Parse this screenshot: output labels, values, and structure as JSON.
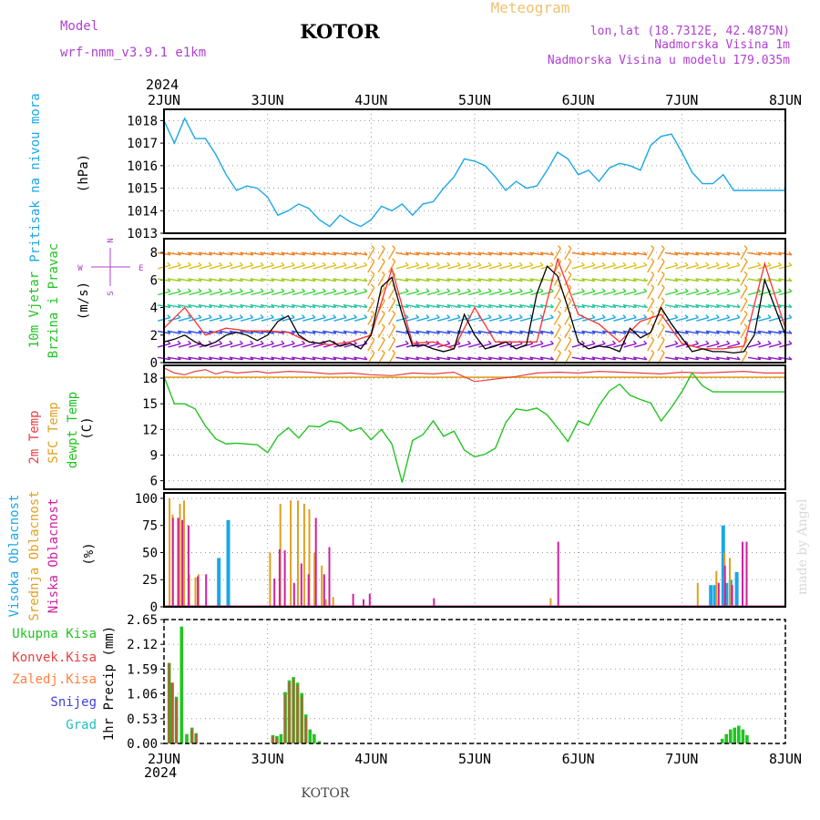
{
  "header": {
    "model_label": "Model",
    "model_name": "wrf-nmm_v3.9.1  e1km",
    "station": "KOTOR",
    "meteogram_label": "Meteogram",
    "lonlat": "lon,lat (18.7312E, 42.4875N)",
    "elevation": "Nadmorska Visina 1m",
    "model_elevation": "Nadmorska Visina u modelu 179.035m",
    "watermark": "made by Angel",
    "footer_station": "KOTOR"
  },
  "time_axis": {
    "year": "2024",
    "labels": [
      "2JUN",
      "3JUN",
      "4JUN",
      "5JUN",
      "6JUN",
      "7JUN",
      "8JUN"
    ]
  },
  "colors": {
    "pressure": "#1aa7e6",
    "wind_speed": "#000000",
    "gust": "#ff3030",
    "temp2m": "#e84040",
    "sfc_temp": "#e0a020",
    "dewpt": "#22c422",
    "high_cloud": "#1aa7e6",
    "mid_cloud": "#e0a020",
    "low_cloud": "#d020a0",
    "total_precip": "#22c422",
    "conv_precip": "#e84040",
    "frozen": "#ff8040",
    "snow": "#4040e0",
    "hail": "#20c0c0",
    "purple_text": "#b040d0"
  },
  "chart_data": [
    {
      "type": "line",
      "panel": "pressure",
      "ylabel": "(hPa)",
      "side_labels": [
        "Pritisak na nivou mora"
      ],
      "ylim": [
        1013,
        1018.5
      ],
      "yticks": [
        1013,
        1014,
        1015,
        1016,
        1017,
        1018
      ],
      "series": [
        {
          "x": [
            0,
            0.1,
            0.2,
            0.3,
            0.4,
            0.5,
            0.6,
            0.7,
            0.8,
            0.9,
            1.0,
            1.1,
            1.2,
            1.3,
            1.4,
            1.5,
            1.6,
            1.7,
            1.8,
            1.9,
            2.0,
            2.1,
            2.2,
            2.3,
            2.4,
            2.5,
            2.6,
            2.7,
            2.8,
            2.9,
            3.0,
            3.1,
            3.2,
            3.3,
            3.4,
            3.5,
            3.6,
            3.7,
            3.8,
            3.9,
            4.0,
            4.1,
            4.2,
            4.3,
            4.4,
            4.5,
            4.6,
            4.7,
            4.8,
            4.9,
            5.0,
            5.1,
            5.2,
            5.3,
            5.4,
            5.5,
            5.6,
            5.7,
            5.8,
            5.9,
            6.0
          ],
          "values": [
            1018.0,
            1017.0,
            1018.1,
            1017.2,
            1017.2,
            1016.5,
            1015.6,
            1014.9,
            1015.1,
            1015.0,
            1014.6,
            1013.8,
            1014.0,
            1014.3,
            1014.1,
            1013.6,
            1013.3,
            1013.8,
            1013.5,
            1013.3,
            1013.6,
            1014.2,
            1014.0,
            1014.3,
            1013.8,
            1014.3,
            1014.4,
            1015.0,
            1015.5,
            1016.3,
            1016.2,
            1016.0,
            1015.5,
            1014.9,
            1015.3,
            1015.0,
            1015.1,
            1015.8,
            1016.6,
            1016.3,
            1015.6,
            1015.8,
            1015.3,
            1015.9,
            1016.1,
            1016.0,
            1015.8,
            1016.9,
            1017.3,
            1017.4,
            1016.6,
            1015.7,
            1015.2,
            1015.2,
            1015.6,
            1014.9,
            1014.9,
            1014.9,
            1014.9,
            1014.9,
            1014.9
          ]
        }
      ]
    },
    {
      "type": "line",
      "panel": "wind",
      "ylabel": "(m/s)",
      "side_labels": [
        "10m Vjetar",
        "Brzina i Pravac"
      ],
      "compass": {
        "n": "N",
        "e": "E",
        "w": "W",
        "s": "S"
      },
      "ylim": [
        0,
        9
      ],
      "yticks": [
        0,
        2,
        4,
        6,
        8
      ],
      "series": [
        {
          "name": "speed",
          "x": [
            0,
            0.1,
            0.2,
            0.3,
            0.4,
            0.5,
            0.6,
            0.7,
            0.8,
            0.9,
            1.0,
            1.1,
            1.2,
            1.3,
            1.4,
            1.5,
            1.6,
            1.7,
            1.8,
            1.9,
            2.0,
            2.1,
            2.2,
            2.3,
            2.4,
            2.5,
            2.6,
            2.7,
            2.8,
            2.9,
            3.0,
            3.1,
            3.2,
            3.3,
            3.4,
            3.5,
            3.6,
            3.7,
            3.8,
            3.9,
            4.0,
            4.1,
            4.2,
            4.3,
            4.4,
            4.5,
            4.6,
            4.7,
            4.8,
            4.9,
            5.0,
            5.1,
            5.2,
            5.3,
            5.4,
            5.5,
            5.6,
            5.7,
            5.8,
            5.9,
            6.0
          ],
          "values": [
            1.5,
            1.7,
            2.0,
            1.5,
            1.2,
            1.5,
            2.0,
            2.2,
            2.0,
            1.6,
            2.0,
            3.0,
            3.4,
            2.0,
            1.5,
            1.4,
            1.6,
            1.2,
            1.4,
            1.0,
            2.0,
            5.5,
            6.2,
            3.5,
            1.2,
            1.3,
            1.0,
            0.8,
            1.0,
            3.5,
            2.0,
            1.0,
            1.2,
            1.5,
            1.0,
            1.3,
            5.0,
            7.0,
            6.3,
            4.0,
            1.5,
            1.0,
            1.2,
            1.1,
            0.8,
            2.5,
            1.8,
            2.2,
            4.0,
            2.8,
            1.8,
            0.8,
            1.0,
            0.8,
            0.8,
            0.7,
            0.8,
            2.0,
            6.0,
            4.0,
            2.0
          ]
        },
        {
          "name": "gust",
          "x": [
            0,
            0.2,
            0.4,
            0.6,
            0.8,
            1.0,
            1.2,
            1.4,
            1.6,
            1.8,
            2.0,
            2.2,
            2.4,
            2.6,
            2.8,
            3.0,
            3.2,
            3.4,
            3.6,
            3.8,
            4.0,
            4.2,
            4.4,
            4.6,
            4.8,
            5.0,
            5.2,
            5.4,
            5.6,
            5.8,
            6.0
          ],
          "values": [
            2.5,
            4.0,
            2.0,
            2.5,
            2.3,
            2.3,
            2.2,
            1.5,
            1.3,
            1.5,
            2.0,
            6.8,
            1.4,
            1.5,
            1.0,
            4.0,
            1.5,
            1.5,
            1.5,
            7.5,
            3.5,
            2.8,
            1.5,
            3.0,
            3.5,
            1.4,
            1.0,
            1.0,
            1.2,
            7.2,
            2.5
          ]
        }
      ]
    },
    {
      "type": "line",
      "panel": "temperature",
      "ylabel": "(C)",
      "side_labels": [
        "2m Temp",
        "SFC Temp",
        "dewpt Temp"
      ],
      "ylim": [
        5,
        19.5
      ],
      "yticks": [
        6,
        9,
        12,
        15,
        18
      ],
      "series": [
        {
          "name": "2m",
          "x": [
            0,
            0.1,
            0.2,
            0.3,
            0.4,
            0.5,
            0.6,
            0.7,
            0.8,
            0.9,
            1.0,
            1.2,
            1.4,
            1.6,
            1.8,
            2.0,
            2.2,
            2.4,
            2.6,
            2.8,
            3.0,
            3.2,
            3.4,
            3.6,
            3.8,
            4.0,
            4.2,
            4.4,
            4.6,
            4.8,
            5.0,
            5.2,
            5.4,
            5.6,
            5.8,
            6.0
          ],
          "values": [
            19.2,
            18.6,
            18.4,
            18.8,
            19.0,
            18.5,
            18.8,
            18.6,
            18.7,
            18.8,
            18.6,
            18.8,
            18.7,
            18.5,
            18.6,
            18.4,
            18.3,
            18.6,
            18.5,
            18.7,
            17.6,
            17.9,
            18.2,
            18.6,
            18.7,
            18.6,
            18.8,
            18.7,
            18.6,
            18.5,
            18.7,
            18.6,
            18.7,
            18.8,
            18.6,
            18.6
          ]
        },
        {
          "name": "sfc",
          "x": [
            0,
            1,
            2,
            3,
            4,
            5,
            6
          ],
          "values": [
            18.1,
            18.1,
            18.1,
            18.1,
            18.1,
            18.1,
            18.1
          ]
        },
        {
          "name": "dewpt",
          "x": [
            0,
            0.1,
            0.2,
            0.3,
            0.4,
            0.5,
            0.6,
            0.7,
            0.8,
            0.9,
            1.0,
            1.1,
            1.2,
            1.3,
            1.4,
            1.5,
            1.6,
            1.7,
            1.8,
            1.9,
            2.0,
            2.1,
            2.2,
            2.3,
            2.4,
            2.5,
            2.6,
            2.7,
            2.8,
            2.9,
            3.0,
            3.1,
            3.2,
            3.3,
            3.4,
            3.5,
            3.6,
            3.7,
            3.8,
            3.9,
            4.0,
            4.1,
            4.2,
            4.3,
            4.4,
            4.5,
            4.6,
            4.7,
            4.8,
            4.9,
            5.0,
            5.1,
            5.2,
            5.3,
            5.4,
            5.5,
            5.6,
            5.7,
            5.8,
            5.9,
            6.0
          ],
          "values": [
            18.2,
            15.0,
            15.0,
            14.4,
            12.4,
            10.9,
            10.3,
            10.4,
            10.3,
            10.2,
            9.3,
            11.2,
            12.2,
            11.0,
            12.4,
            12.3,
            13.0,
            12.8,
            11.8,
            12.2,
            10.8,
            12.0,
            10.3,
            5.8,
            10.7,
            11.4,
            13.0,
            11.2,
            11.8,
            9.6,
            8.8,
            9.1,
            9.8,
            12.8,
            14.4,
            14.2,
            14.5,
            13.7,
            12.2,
            10.6,
            13.0,
            12.5,
            14.8,
            16.5,
            17.3,
            16.0,
            15.5,
            15.1,
            13.0,
            14.6,
            16.4,
            18.6,
            17.1,
            16.4,
            16.4,
            16.4,
            16.4,
            16.4,
            16.4,
            16.4,
            16.4
          ]
        }
      ]
    },
    {
      "type": "bar",
      "panel": "cloud",
      "ylabel": "(%)",
      "side_labels": [
        "Visoka Oblacnost",
        "Srednja Oblacnost",
        "Niska Oblacnost"
      ],
      "ylim": [
        0,
        105
      ],
      "yticks": [
        0,
        25,
        50,
        75,
        100
      ],
      "series": [
        {
          "name": "high",
          "x": [
            0.53,
            0.62,
            5.28,
            5.32,
            5.4,
            5.43,
            5.47,
            5.53
          ],
          "values": [
            45,
            80,
            20,
            20,
            75,
            22,
            25,
            32
          ]
        },
        {
          "name": "mid",
          "x": [
            0.08,
            0.11,
            0.18,
            0.22,
            0.27,
            0.33,
            0.36,
            1.05,
            1.15,
            1.25,
            1.32,
            1.38,
            1.43,
            1.48,
            1.55,
            1.59,
            1.66,
            3.76,
            5.18,
            5.36,
            5.44,
            5.49
          ],
          "values": [
            100,
            85,
            95,
            98,
            30,
            27,
            30,
            50,
            95,
            98,
            98,
            95,
            90,
            50,
            38,
            7,
            9,
            8,
            22,
            33,
            50,
            45
          ]
        },
        {
          "name": "low",
          "x": [
            0.06,
            0.11,
            0.15,
            0.21,
            0.3,
            0.38,
            1.04,
            1.09,
            1.14,
            1.23,
            1.3,
            1.37,
            1.44,
            1.52,
            1.57,
            1.8,
            1.9,
            1.96,
            2.58,
            3.78,
            5.33,
            5.39,
            5.46,
            5.56,
            5.6
          ],
          "values": [
            82,
            82,
            80,
            75,
            28,
            30,
            26,
            53,
            52,
            22,
            40,
            30,
            82,
            30,
            55,
            12,
            7,
            12,
            8,
            60,
            22,
            38,
            20,
            60,
            60
          ]
        }
      ]
    },
    {
      "type": "bar",
      "panel": "precip",
      "ylabel": "1hr Precip (mm)",
      "side_labels": [
        "Ukupna Kisa",
        "Konvek.Kisa",
        "Zaledj.Kisa",
        "Snijeg",
        "Grad"
      ],
      "ylim": [
        0,
        2.65
      ],
      "yticks": [
        0,
        0.53,
        1.06,
        1.59,
        2.12,
        2.65
      ],
      "series": [
        {
          "name": "total",
          "x": [
            0.05,
            0.08,
            0.12,
            0.17,
            0.22,
            0.27,
            0.31,
            1.05,
            1.09,
            1.13,
            1.17,
            1.21,
            1.25,
            1.29,
            1.33,
            1.37,
            1.41,
            1.45,
            1.5,
            5.39,
            5.43,
            5.47,
            5.51,
            5.55,
            5.59,
            5.63
          ],
          "values": [
            1.72,
            1.3,
            1.0,
            2.5,
            0.2,
            0.34,
            0.22,
            0.18,
            0.16,
            0.2,
            1.1,
            1.35,
            1.42,
            1.3,
            1.08,
            0.62,
            0.3,
            0.2,
            0.05,
            0.1,
            0.2,
            0.3,
            0.34,
            0.38,
            0.3,
            0.18
          ]
        },
        {
          "name": "conv",
          "x": [
            0.05,
            0.08,
            0.12,
            0.27,
            0.31,
            1.05,
            1.09,
            1.17,
            1.21,
            1.25,
            1.29,
            1.33,
            1.37
          ],
          "values": [
            1.72,
            1.3,
            0.95,
            0.3,
            0.2,
            0.15,
            0.12,
            1.05,
            1.3,
            1.38,
            1.25,
            1.0,
            0.55
          ]
        }
      ]
    }
  ]
}
